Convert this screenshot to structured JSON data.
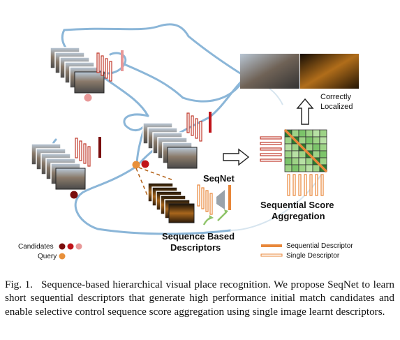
{
  "figure": {
    "labels": {
      "seqnet": "SeqNet",
      "sequence_based_line1": "Sequence Based",
      "sequence_based_line2": "Descriptors",
      "sequential_score_line1": "Sequential Score",
      "sequential_score_line2": "Aggregation",
      "correctly_line1": "Correctly",
      "correctly_line2": "Localized",
      "candidates": "Candidates",
      "query": "Query",
      "legend_sequential": "Sequential Descriptor",
      "legend_single": "Single Descriptor"
    },
    "colors": {
      "route": "#8bb6d8",
      "descriptor": "#c0392b",
      "sequential_descriptor": "#e8873a",
      "candidate_dark": "#7a0d0d",
      "candidate_mid": "#c0141a",
      "candidate_light": "#e89898",
      "query": "#e8903a",
      "matrix": "#8fd07a",
      "matrix_diag": "#e8873a"
    }
  },
  "caption": {
    "number": "Fig. 1.",
    "text": "Sequence-based hierarchical visual place recognition. We propose SeqNet to learn short sequential descriptors that generate high performance initial match candidates and enable selective control sequence score aggregation using single image learnt descriptors."
  }
}
